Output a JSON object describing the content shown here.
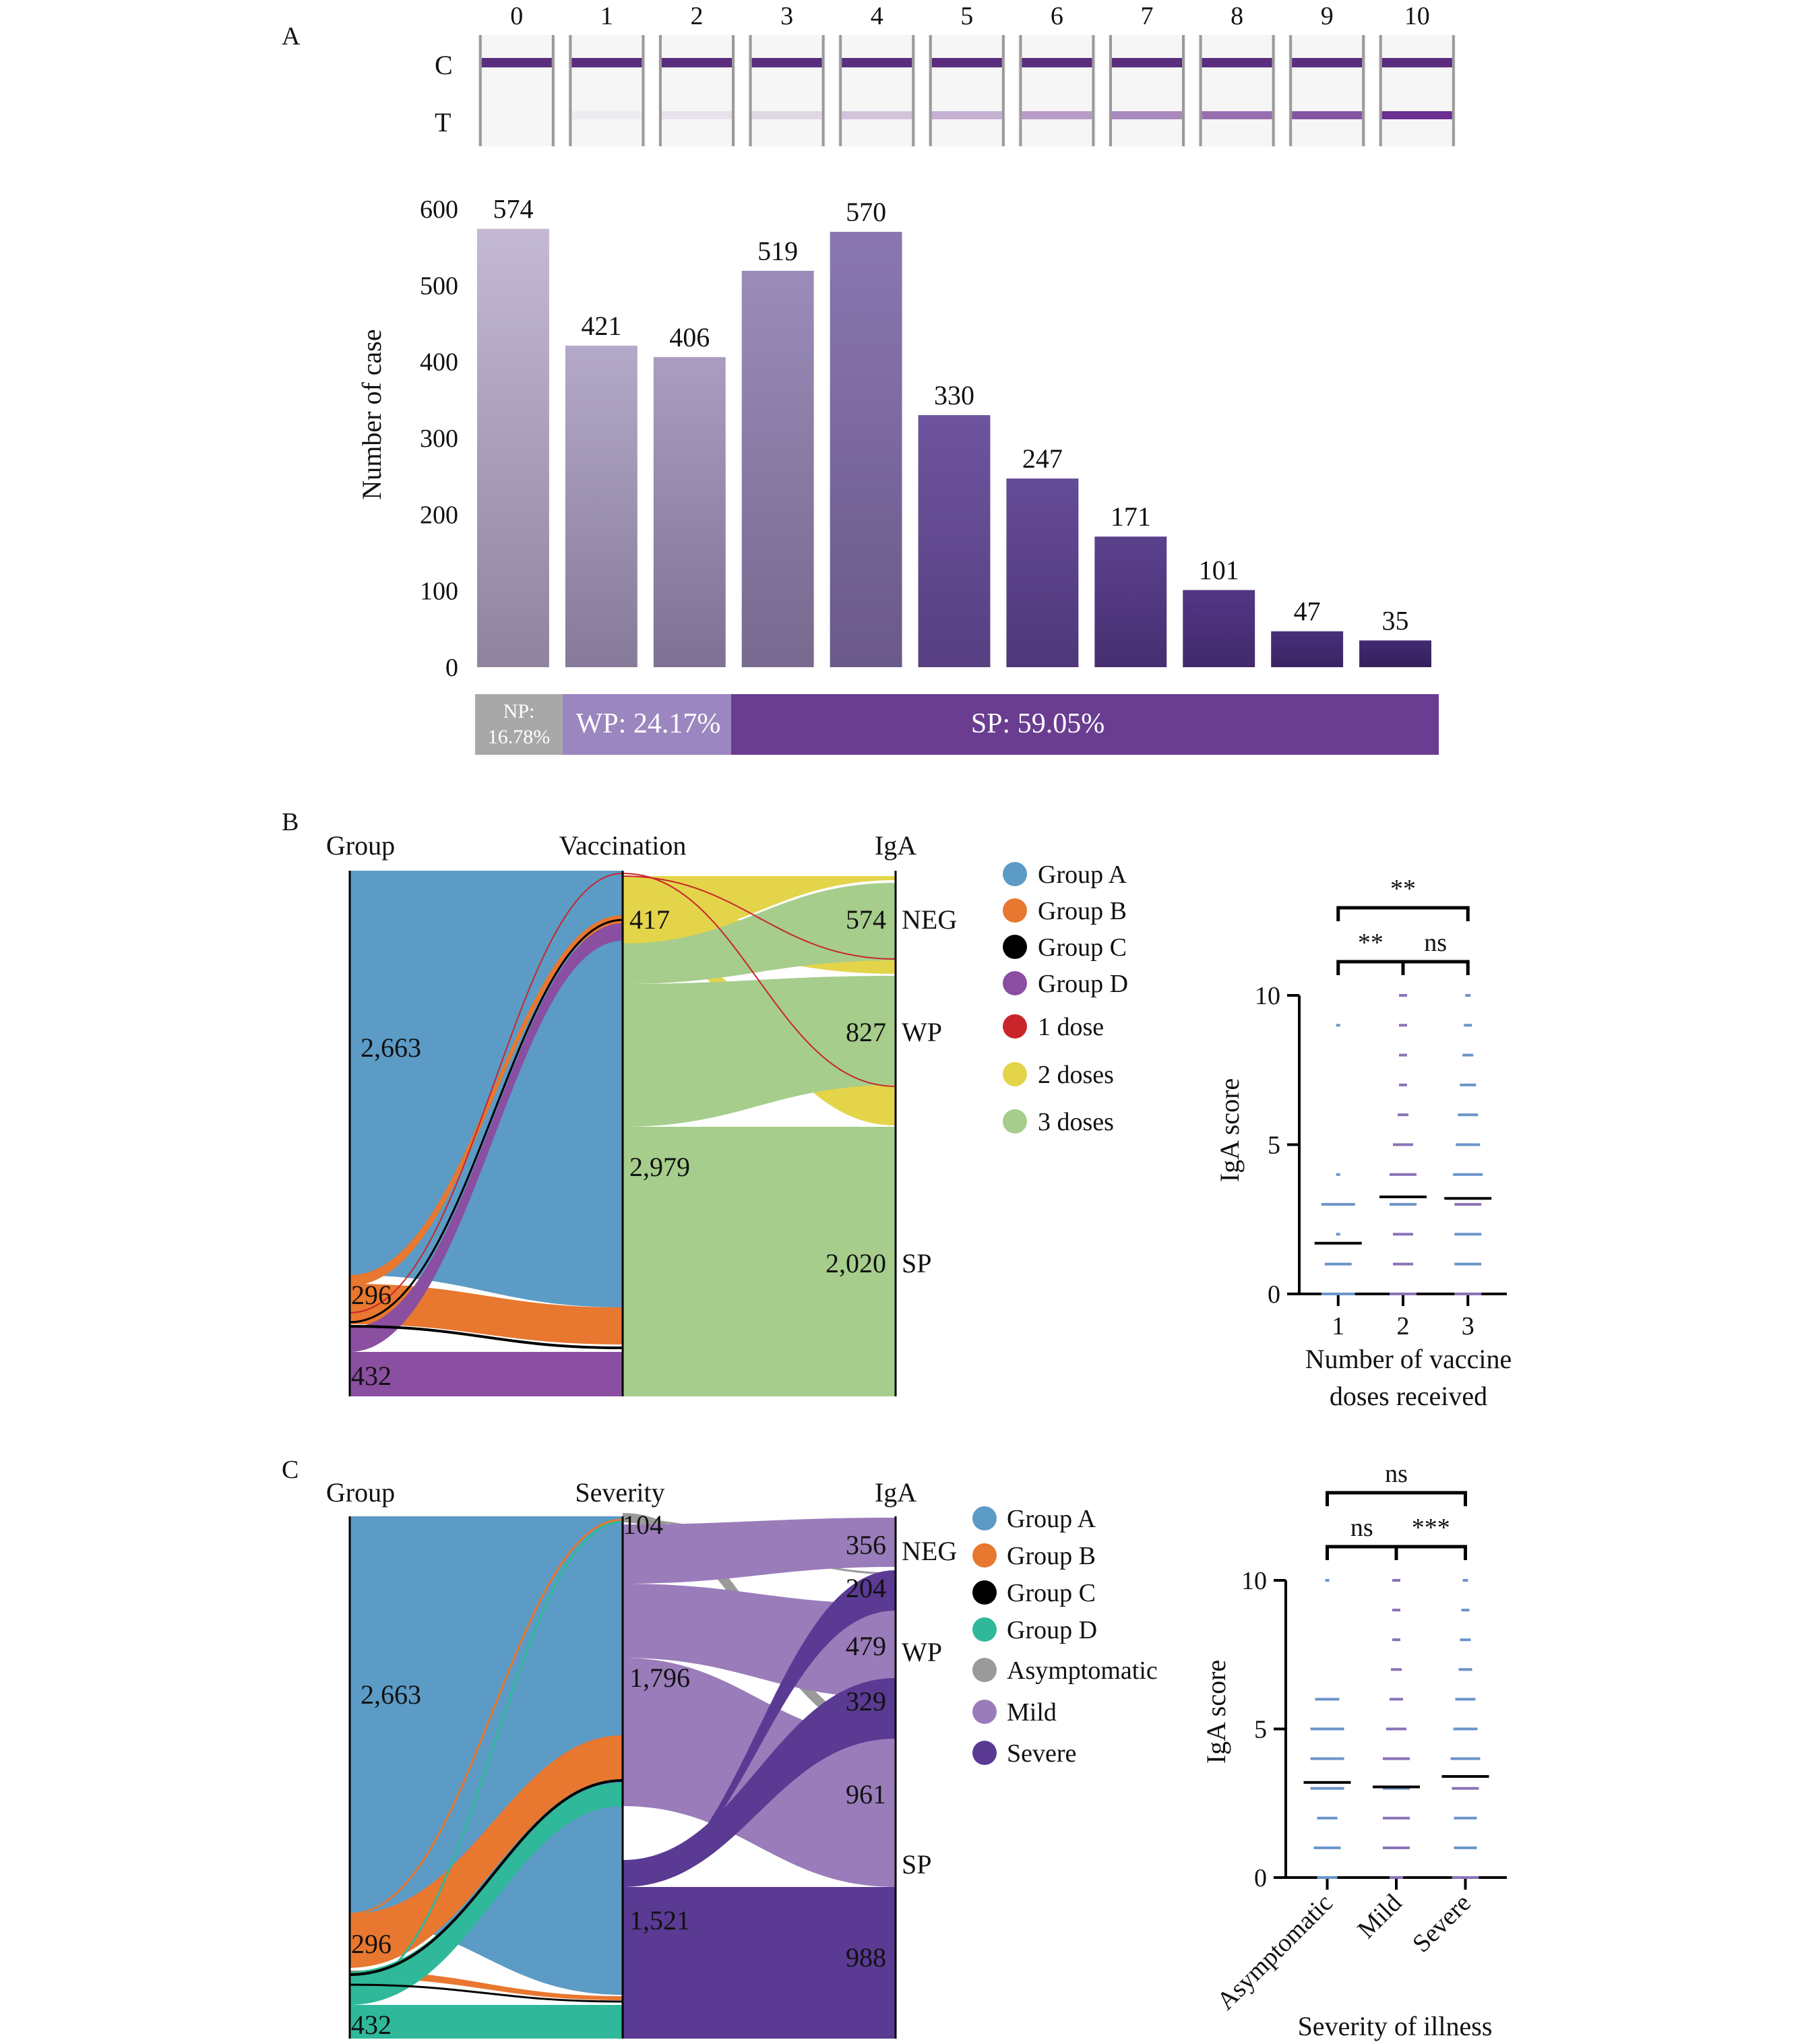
{
  "panels": {
    "A": "A",
    "B": "B",
    "C": "C"
  },
  "strip": {
    "row_labels": [
      "C",
      "T"
    ],
    "intensity": [
      0,
      0.05,
      0.1,
      0.15,
      0.25,
      0.35,
      0.45,
      0.55,
      0.68,
      0.82,
      1.0
    ]
  },
  "colors": {
    "group_a": "#5b9bc5",
    "group_b": "#e8772f",
    "group_c": "#000000",
    "group_d_b": "#8a4fa0",
    "group_d_c": "#2fb89a",
    "dose1": "#c9262c",
    "dose2": "#e3d44a",
    "dose3": "#a6cd8c",
    "asymptomatic": "#9a9a9a",
    "mild": "#9a7cba",
    "severe": "#5a3a93",
    "np_box": "#a8a8a8",
    "wp_box": "#9b86bf",
    "sp_box": "#6a3d91"
  },
  "chart_data": [
    {
      "id": "A",
      "type": "bar",
      "categories": [
        "0",
        "1",
        "2",
        "3",
        "4",
        "5",
        "6",
        "7",
        "8",
        "9",
        "10"
      ],
      "values": [
        574,
        421,
        406,
        519,
        570,
        330,
        247,
        171,
        101,
        47,
        35
      ],
      "value_labels": [
        "574",
        "421",
        "406",
        "519",
        "570",
        "330",
        "247",
        "171",
        "101",
        "47",
        "35"
      ],
      "ylabel": "Number of case",
      "ylim": [
        0,
        600
      ],
      "yticks": [
        "0",
        "100",
        "200",
        "300",
        "400",
        "500",
        "600"
      ],
      "categories_bar": [
        {
          "label_1": "NP:",
          "label_2": "16.78%",
          "span": [
            0,
            0
          ]
        },
        {
          "label": "WP: 24.17%",
          "span": [
            1,
            2
          ]
        },
        {
          "label": "SP: 59.05%",
          "span": [
            3,
            10
          ]
        }
      ]
    },
    {
      "id": "B-sankey",
      "type": "sankey",
      "columns": [
        "Group",
        "Vaccination",
        "IgA"
      ],
      "group_values": [
        {
          "name": "2,663"
        },
        {
          "name": "296"
        },
        {
          "name": "432"
        }
      ],
      "middle_values": [
        {
          "name": "417"
        },
        {
          "name": "2,979"
        }
      ],
      "right_values": [
        {
          "value": "574",
          "class": "NEG"
        },
        {
          "value": "827",
          "class": "WP"
        },
        {
          "value": "2,020",
          "class": "SP"
        }
      ],
      "legend": [
        "Group A",
        "Group B",
        "Group C",
        "Group D",
        "1 dose",
        "2 doses",
        "3 doses"
      ]
    },
    {
      "id": "B-dots",
      "type": "scatter",
      "categories": [
        "1",
        "2",
        "3"
      ],
      "means": [
        1.7,
        3.25,
        3.2
      ],
      "ylabel": "IgA score",
      "xlabel_1": "Number of vaccine",
      "xlabel_2": "doses received",
      "ylim": [
        0,
        10
      ],
      "yticks": [
        "0",
        "5",
        "10"
      ],
      "significance": [
        {
          "pair": [
            "1",
            "3"
          ],
          "label": "**"
        },
        {
          "pair": [
            "1",
            "2"
          ],
          "label": "**"
        },
        {
          "pair": [
            "2",
            "3"
          ],
          "label": "ns"
        }
      ]
    },
    {
      "id": "C-sankey",
      "type": "sankey",
      "columns": [
        "Group",
        "Severity",
        "IgA"
      ],
      "group_values": [
        {
          "name": "2,663"
        },
        {
          "name": "296"
        },
        {
          "name": "432"
        }
      ],
      "middle_values": [
        {
          "name": "104"
        },
        {
          "name": "1,796"
        },
        {
          "name": "1,521"
        }
      ],
      "right_numbers": [
        "356",
        "204",
        "479",
        "329",
        "961",
        "988"
      ],
      "right_classes": [
        "NEG",
        "WP",
        "SP"
      ],
      "legend": [
        "Group A",
        "Group B",
        "Group C",
        "Group D",
        "Asymptomatic",
        "Mild",
        "Severe"
      ]
    },
    {
      "id": "C-dots",
      "type": "scatter",
      "categories": [
        "Asymptomatic",
        "Mild",
        "Severe"
      ],
      "means": [
        3.2,
        3.05,
        3.4
      ],
      "ylabel": "IgA score",
      "xlabel": "Severity of illness",
      "ylim": [
        0,
        10
      ],
      "yticks": [
        "0",
        "5",
        "10"
      ],
      "significance": [
        {
          "pair": [
            "Asymptomatic",
            "Severe"
          ],
          "label": "ns"
        },
        {
          "pair": [
            "Asymptomatic",
            "Mild"
          ],
          "label": "ns"
        },
        {
          "pair": [
            "Mild",
            "Severe"
          ],
          "label": "***"
        }
      ]
    }
  ]
}
